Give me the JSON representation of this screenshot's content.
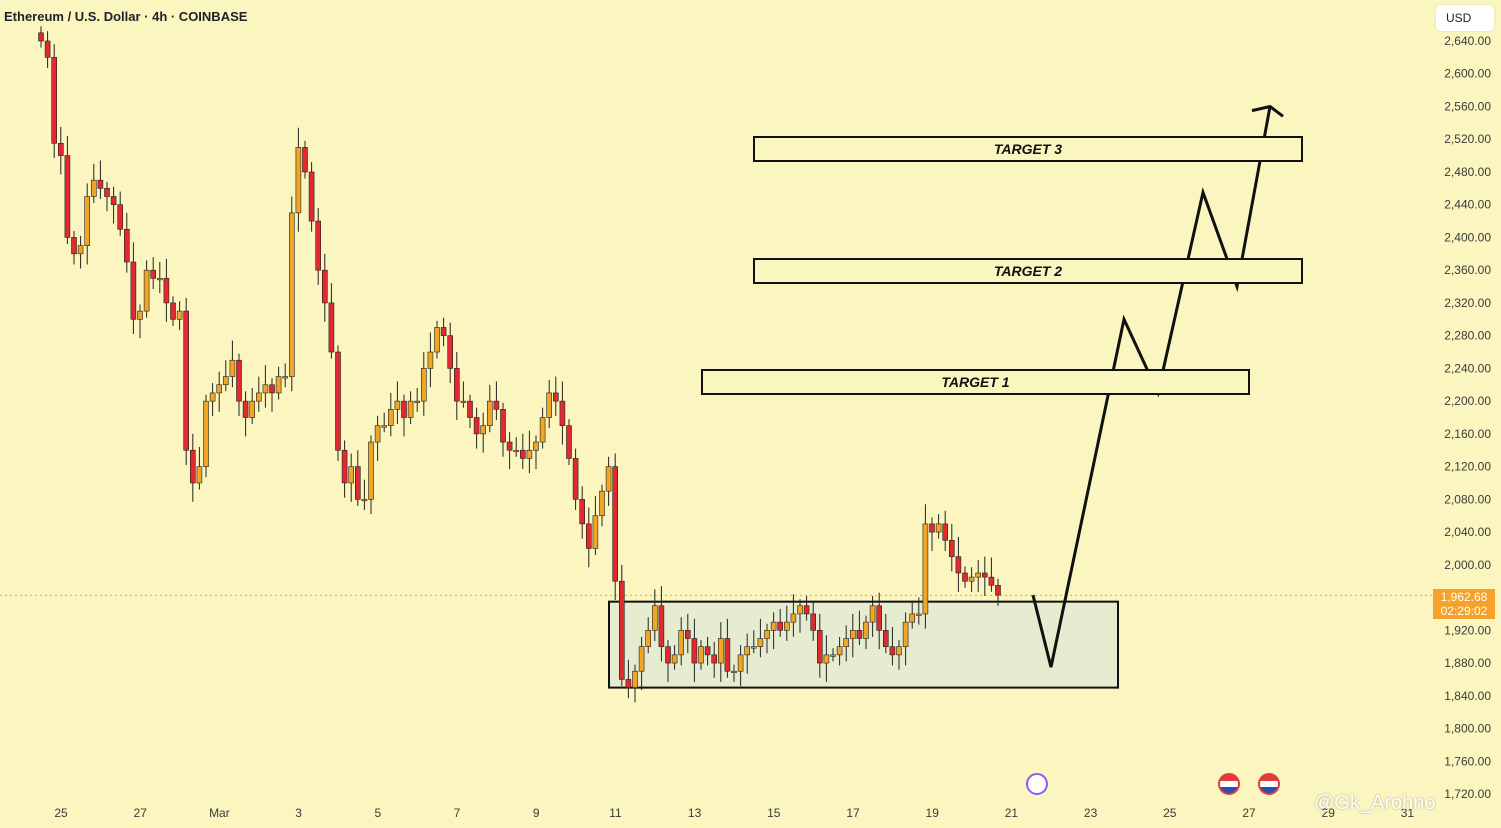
{
  "header": {
    "title": "Ethereum / U.S. Dollar · 4h · COINBASE"
  },
  "currency_button": {
    "label": "USD"
  },
  "last_price": {
    "value": "1,962.68",
    "countdown": "02:29:02"
  },
  "targets": [
    {
      "label": "TARGET 1",
      "price": 2220
    },
    {
      "label": "TARGET 2",
      "price": 2355
    },
    {
      "label": "TARGET 3",
      "price": 2505
    }
  ],
  "watermark": "@Gk_Arohno",
  "colors": {
    "background": "#fbf6c0",
    "up": "#f0a524",
    "down": "#e02a2f",
    "last_price": "#f5a12a",
    "zone_fill": "#e6ecd0"
  },
  "chart_data": {
    "type": "candlestick",
    "title": "Ethereum / U.S. Dollar · 4h · COINBASE",
    "interval": "4h",
    "ylim": [
      1720,
      2640
    ],
    "yticks": [
      1720,
      1760,
      1800,
      1840,
      1880,
      1920,
      2000,
      2040,
      2080,
      2120,
      2160,
      2200,
      2240,
      2280,
      2320,
      2360,
      2400,
      2440,
      2480,
      2520,
      2560,
      2600,
      2640
    ],
    "xticks": [
      {
        "label": "25",
        "day": 0
      },
      {
        "label": "27",
        "day": 2
      },
      {
        "label": "Mar",
        "day": 4
      },
      {
        "label": "3",
        "day": 6
      },
      {
        "label": "5",
        "day": 8
      },
      {
        "label": "7",
        "day": 10
      },
      {
        "label": "9",
        "day": 12
      },
      {
        "label": "11",
        "day": 14
      },
      {
        "label": "13",
        "day": 16
      },
      {
        "label": "15",
        "day": 18
      },
      {
        "label": "17",
        "day": 20
      },
      {
        "label": "19",
        "day": 22
      },
      {
        "label": "21",
        "day": 24
      },
      {
        "label": "23",
        "day": 26
      },
      {
        "label": "25",
        "day": 28
      },
      {
        "label": "27",
        "day": 30
      },
      {
        "label": "29",
        "day": 32
      },
      {
        "label": "31",
        "day": 34
      }
    ],
    "candles_close": [
      2640,
      2620,
      2515,
      2500,
      2400,
      2380,
      2390,
      2450,
      2470,
      2460,
      2450,
      2440,
      2410,
      2370,
      2300,
      2310,
      2360,
      2350,
      2350,
      2320,
      2300,
      2310,
      2140,
      2100,
      2120,
      2200,
      2210,
      2220,
      2230,
      2250,
      2200,
      2180,
      2200,
      2210,
      2220,
      2210,
      2230,
      2230,
      2430,
      2510,
      2480,
      2420,
      2360,
      2320,
      2260,
      2140,
      2100,
      2120,
      2080,
      2080,
      2150,
      2170,
      2170,
      2190,
      2200,
      2180,
      2200,
      2200,
      2240,
      2260,
      2290,
      2280,
      2240,
      2200,
      2200,
      2180,
      2160,
      2170,
      2200,
      2190,
      2150,
      2140,
      2140,
      2130,
      2140,
      2150,
      2180,
      2210,
      2200,
      2170,
      2130,
      2080,
      2050,
      2020,
      2060,
      2090,
      2120,
      1980,
      1860,
      1850,
      1870,
      1900,
      1920,
      1950,
      1900,
      1880,
      1890,
      1920,
      1910,
      1880,
      1900,
      1890,
      1880,
      1910,
      1870,
      1870,
      1890,
      1900,
      1900,
      1910,
      1920,
      1930,
      1920,
      1930,
      1940,
      1950,
      1940,
      1920,
      1880,
      1890,
      1890,
      1900,
      1910,
      1920,
      1910,
      1930,
      1950,
      1920,
      1900,
      1890,
      1900,
      1930,
      1940,
      1940,
      2050,
      2040,
      2050,
      2030,
      2010,
      1990,
      1980,
      1985,
      1990,
      1985,
      1975,
      1963
    ],
    "zone": {
      "price_low": 1850,
      "price_high": 1955
    },
    "projection_path_prices": [
      1963,
      1875,
      2300,
      2210,
      2455,
      2340,
      2560
    ],
    "projection_arrow_tail": [
      2555,
      2580
    ]
  }
}
